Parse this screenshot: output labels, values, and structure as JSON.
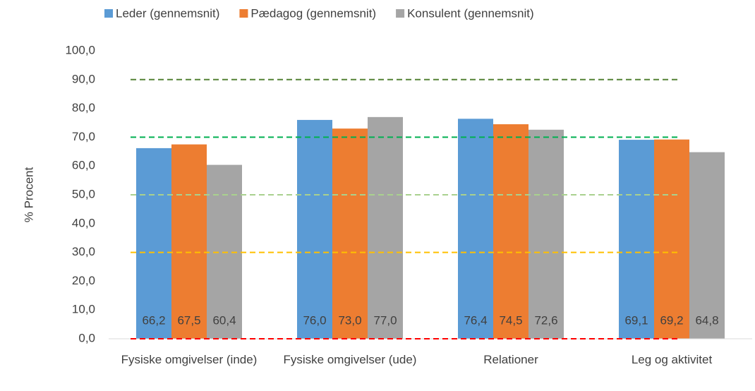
{
  "chart_data": {
    "type": "bar",
    "y_axis_label": "% Procent",
    "categories": [
      "Fysiske omgivelser (inde)",
      "Fysiske omgivelser (ude)",
      "Relationer",
      "Leg og aktivitet"
    ],
    "series": [
      {
        "name": "Leder (gennemsnit)",
        "color": "#5b9bd5",
        "values": [
          66.2,
          76.0,
          76.4,
          69.1
        ],
        "value_labels": [
          "66,2",
          "76,0",
          "76,4",
          "69,1"
        ]
      },
      {
        "name": "Pædagog (gennemsnit)",
        "color": "#ed7d31",
        "values": [
          67.5,
          73.0,
          74.5,
          69.2
        ],
        "value_labels": [
          "67,5",
          "73,0",
          "74,5",
          "69,2"
        ]
      },
      {
        "name": "Konsulent (gennemsnit)",
        "color": "#a5a5a5",
        "values": [
          60.4,
          77.0,
          72.6,
          64.8
        ],
        "value_labels": [
          "60,4",
          "77,0",
          "72,6",
          "64,8"
        ]
      }
    ],
    "ylim": [
      0,
      100
    ],
    "yticks": [
      {
        "value": 0,
        "label": "0,0"
      },
      {
        "value": 10,
        "label": "10,0"
      },
      {
        "value": 20,
        "label": "20,0"
      },
      {
        "value": 30,
        "label": "30,0"
      },
      {
        "value": 40,
        "label": "40,0"
      },
      {
        "value": 50,
        "label": "50,0"
      },
      {
        "value": 60,
        "label": "60,0"
      },
      {
        "value": 70,
        "label": "70,0"
      },
      {
        "value": 80,
        "label": "80,0"
      },
      {
        "value": 90,
        "label": "90,0"
      },
      {
        "value": 100,
        "label": "100,0"
      }
    ],
    "reference_lines": [
      {
        "value": 0,
        "color": "#ff0000"
      },
      {
        "value": 30,
        "color": "#ffc000"
      },
      {
        "value": 50,
        "color": "#a9d18e"
      },
      {
        "value": 70,
        "color": "#00b050"
      },
      {
        "value": 90,
        "color": "#548235"
      }
    ],
    "legend": "top"
  }
}
